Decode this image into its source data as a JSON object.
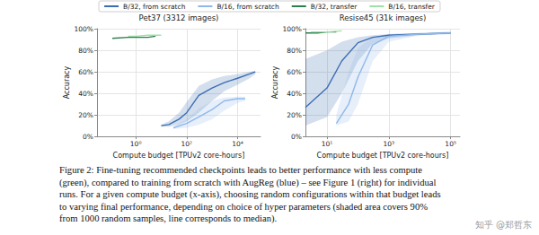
{
  "chart_data": [
    {
      "type": "line",
      "title": "Pet37 (3312 images)",
      "x_label": "Compute budget [TPUv2 core-hours]",
      "y_label": "Accuracy",
      "log": "x",
      "grid": true,
      "legend": "top",
      "xlim": [
        0.03,
        80000
      ],
      "xticks": [
        {
          "value": 1,
          "label": "10⁰"
        },
        {
          "value": 100,
          "label": "10²"
        },
        {
          "value": 10000,
          "label": "10⁴"
        }
      ],
      "ylim": [
        0,
        100
      ],
      "yticks": [
        {
          "value": 0,
          "label": "0%"
        },
        {
          "value": 20,
          "label": "20%"
        },
        {
          "value": 40,
          "label": "40%"
        },
        {
          "value": 60,
          "label": "60%"
        },
        {
          "value": 80,
          "label": "80%"
        },
        {
          "value": 100,
          "label": "100%"
        }
      ],
      "series": [
        {
          "name": "B/32, from scratch",
          "color": "#3b6db3",
          "x": [
            10,
            20,
            50,
            100,
            300,
            1000,
            3000,
            10000,
            30000,
            50000
          ],
          "values": [
            10,
            11,
            16,
            22,
            38,
            45,
            50,
            54,
            58,
            60
          ],
          "band_lower": [
            9,
            9,
            11,
            14,
            22,
            33,
            42,
            48,
            54,
            58
          ],
          "band_upper": [
            11,
            14,
            22,
            32,
            47,
            53,
            56,
            58,
            60,
            61
          ]
        },
        {
          "name": "B/16, from scratch",
          "color": "#8fb8ea",
          "x": [
            30,
            100,
            300,
            1000,
            3000,
            10000,
            20000
          ],
          "values": [
            8,
            12,
            18,
            25,
            33,
            35,
            35
          ],
          "band_lower": [
            7,
            8,
            11,
            16,
            24,
            31,
            33
          ],
          "band_upper": [
            9,
            16,
            26,
            33,
            36,
            37,
            37
          ]
        },
        {
          "name": "B/32, transfer",
          "color": "#2e7d4f",
          "x": [
            0.12,
            0.5,
            1,
            3,
            6
          ],
          "values": [
            91,
            92,
            92,
            92,
            93
          ]
        },
        {
          "name": "B/16, transfer",
          "color": "#9fe0a8",
          "x": [
            0.5,
            1,
            3,
            10
          ],
          "values": [
            93,
            93,
            94,
            94
          ]
        }
      ]
    },
    {
      "type": "line",
      "title": "Resise45 (31k images)",
      "x_label": "Compute budget [TPUv2 core-hours]",
      "y_label": "Accuracy",
      "log": "x",
      "grid": true,
      "legend": "top",
      "xlim": [
        2,
        200000
      ],
      "xticks": [
        {
          "value": 10,
          "label": "10¹"
        },
        {
          "value": 1000,
          "label": "10³"
        },
        {
          "value": 100000,
          "label": "10⁵"
        }
      ],
      "ylim": [
        0,
        100
      ],
      "yticks": [
        {
          "value": 0,
          "label": "0%"
        },
        {
          "value": 20,
          "label": "20%"
        },
        {
          "value": 40,
          "label": "40%"
        },
        {
          "value": 60,
          "label": "60%"
        },
        {
          "value": 80,
          "label": "80%"
        },
        {
          "value": 100,
          "label": "100%"
        }
      ],
      "series": [
        {
          "name": "B/32, from scratch",
          "color": "#3b6db3",
          "x": [
            2,
            10,
            30,
            100,
            300,
            1000,
            10000,
            100000
          ],
          "values": [
            27,
            45,
            70,
            87,
            92,
            94,
            95,
            96
          ],
          "band_lower": [
            10,
            18,
            40,
            70,
            86,
            91,
            94,
            95
          ],
          "band_upper": [
            72,
            80,
            88,
            92,
            94,
            95,
            96,
            97
          ]
        },
        {
          "name": "B/16, from scratch",
          "color": "#8fb8ea",
          "x": [
            20,
            50,
            100,
            300,
            1000,
            10000,
            100000
          ],
          "values": [
            12,
            30,
            55,
            85,
            93,
            95,
            96
          ],
          "band_lower": [
            10,
            14,
            30,
            70,
            88,
            94,
            95
          ],
          "band_upper": [
            20,
            60,
            82,
            92,
            95,
            96,
            97
          ]
        },
        {
          "name": "B/32, transfer",
          "color": "#2e7d4f",
          "x": [
            2,
            5,
            10,
            20
          ],
          "values": [
            96,
            96,
            97,
            97
          ]
        },
        {
          "name": "B/16, transfer",
          "color": "#9fe0a8",
          "x": [
            3,
            10,
            30
          ],
          "values": [
            97,
            97,
            98
          ]
        }
      ]
    }
  ],
  "caption": [
    "Figure 2: Fine-tuning recommended checkpoints leads to better performance with less compute",
    "(green), compared to training from scratch with AugReg (blue) – see Figure 1 (right) for individual",
    "runs. For a given compute budget (x-axis), choosing random configurations within that budget leads",
    "to varying final performance, depending on choice of hyper parameters (shaded area covers 90%",
    "from 1000 random samples, line corresponds to median)."
  ],
  "watermark": "知乎 @郑哲东"
}
